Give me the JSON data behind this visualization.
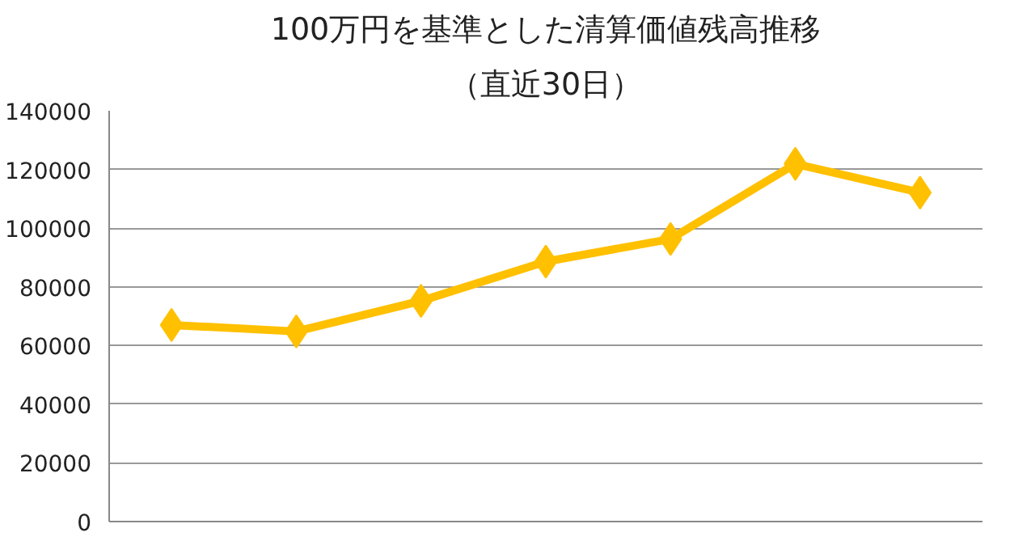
{
  "chart_data": {
    "type": "line",
    "title": "100万円を基準とした清算価値残高推移",
    "subtitle": "（直近30日）",
    "categories": [
      null,
      null,
      null,
      null,
      null,
      null,
      null
    ],
    "series": [
      {
        "color": "#ffc000",
        "values": [
          67000,
          64800,
          75200,
          88600,
          96300,
          121900,
          112100
        ]
      }
    ],
    "ylim": [
      0,
      140000
    ],
    "yticks": [
      0,
      20000,
      40000,
      60000,
      80000,
      100000,
      120000,
      140000
    ],
    "grid": "y",
    "marker": "diamond",
    "line_style": "solid"
  }
}
